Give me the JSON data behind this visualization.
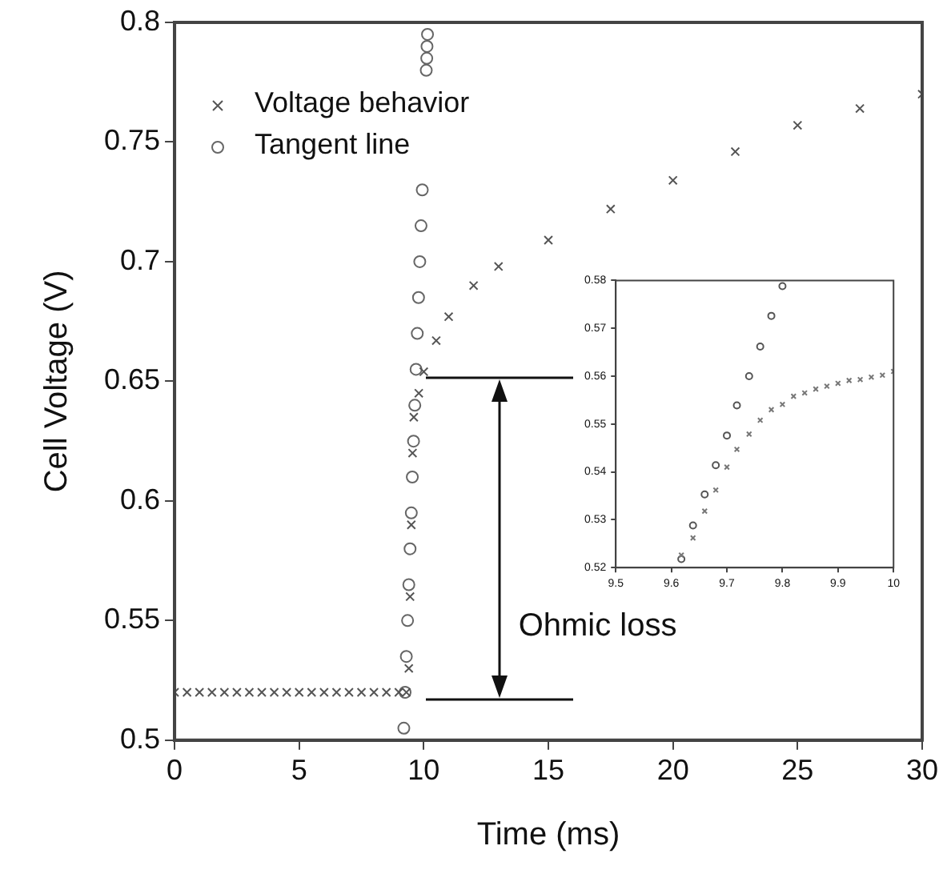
{
  "chart_data": [
    {
      "type": "scatter",
      "xlabel": "Time (ms)",
      "ylabel": "Cell Voltage (V)",
      "xlim": [
        0,
        30
      ],
      "ylim": [
        0.5,
        0.8
      ],
      "xticks": [
        0,
        5,
        10,
        15,
        20,
        25,
        30
      ],
      "yticks": [
        0.5,
        0.55,
        0.6,
        0.65,
        0.7,
        0.75,
        0.8
      ],
      "grid": false,
      "legend": "top left",
      "annotations": [
        "Ohmic loss"
      ],
      "series": [
        {
          "name": "Voltage behavior",
          "color": "#555555",
          "marker": "cross",
          "x": [
            0,
            0.5,
            1,
            1.5,
            2,
            2.5,
            3,
            3.5,
            4,
            4.5,
            5,
            5.5,
            6,
            6.5,
            7,
            7.5,
            8,
            8.5,
            9,
            9.3,
            9.4,
            9.45,
            9.5,
            9.55,
            9.6,
            9.8,
            10,
            10.5,
            11,
            12,
            13,
            15,
            17.5,
            20,
            22.5,
            25,
            27.5,
            30
          ],
          "values": [
            0.52,
            0.52,
            0.52,
            0.52,
            0.52,
            0.52,
            0.52,
            0.52,
            0.52,
            0.52,
            0.52,
            0.52,
            0.52,
            0.52,
            0.52,
            0.52,
            0.52,
            0.52,
            0.52,
            0.52,
            0.53,
            0.56,
            0.59,
            0.62,
            0.635,
            0.645,
            0.654,
            0.667,
            0.677,
            0.69,
            0.698,
            0.709,
            0.722,
            0.734,
            0.746,
            0.757,
            0.764,
            0.77
          ]
        },
        {
          "name": "Tangent line",
          "color": "#666666",
          "marker": "circle",
          "x": [
            9.2,
            9.25,
            9.3,
            9.35,
            9.4,
            9.45,
            9.5,
            9.54,
            9.59,
            9.64,
            9.69,
            9.74,
            9.79,
            9.84,
            9.89,
            9.94,
            10.1,
            10.12,
            10.13,
            10.15
          ],
          "values": [
            0.505,
            0.52,
            0.535,
            0.55,
            0.565,
            0.58,
            0.595,
            0.61,
            0.625,
            0.64,
            0.655,
            0.67,
            0.685,
            0.7,
            0.715,
            0.73,
            0.78,
            0.785,
            0.79,
            0.795
          ]
        }
      ]
    },
    {
      "type": "scatter",
      "xlim": [
        9.5,
        10
      ],
      "ylim": [
        0.52,
        0.58
      ],
      "xticks": [
        9.5,
        9.6,
        9.7,
        9.8,
        9.9,
        10
      ],
      "yticks": [
        0.52,
        0.53,
        0.54,
        0.55,
        0.56,
        0.57,
        0.58
      ],
      "grid": false,
      "series": [
        {
          "color": "#777777",
          "marker": "cross",
          "x": [
            9.618,
            9.639,
            9.66,
            9.68,
            9.7,
            9.718,
            9.74,
            9.76,
            9.78,
            9.8,
            9.82,
            9.84,
            9.86,
            9.88,
            9.9,
            9.92,
            9.94,
            9.96,
            9.98,
            10.0
          ],
          "values": [
            0.5226,
            0.5262,
            0.5318,
            0.5362,
            0.541,
            0.5447,
            0.5479,
            0.5508,
            0.553,
            0.5541,
            0.5558,
            0.5565,
            0.5573,
            0.5579,
            0.5585,
            0.5591,
            0.5593,
            0.5598,
            0.5602,
            0.561
          ]
        },
        {
          "color": "#555555",
          "marker": "circle",
          "x": [
            9.618,
            9.639,
            9.66,
            9.68,
            9.7,
            9.718,
            9.74,
            9.76,
            9.78,
            9.8
          ],
          "values": [
            0.5218,
            0.5288,
            0.5353,
            0.5414,
            0.5476,
            0.5539,
            0.56,
            0.5662,
            0.5726,
            0.5788
          ]
        }
      ]
    }
  ]
}
